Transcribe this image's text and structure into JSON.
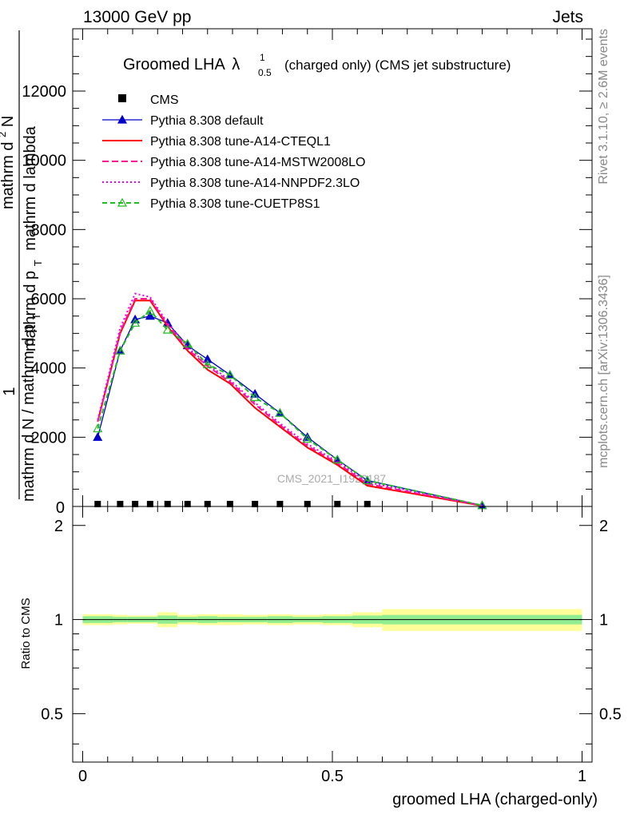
{
  "header": {
    "left": "13000 GeV pp",
    "right": "Jets"
  },
  "side": {
    "rivet": "Rivet 3.1.10, ≥ 2.6M events",
    "mcplots": "mcplots.cern.ch [arXiv:1306.3436]"
  },
  "labels": {
    "title_main": "Groomed LHA",
    "title_lambda": "λ",
    "title_sup": "1",
    "title_sub": "0.5",
    "title_rest": "(charged only) (CMS jet substructure)",
    "ylabel_1": "1",
    "ylabel_bottom": "mathrm d N / mathrm d p",
    "ylabel_bottom_sub": "T",
    "ylabel_top": "mathrm d",
    "ylabel_top_sup": "2",
    "ylabel_top_n": "N",
    "ylabel_top_dpt": "mathrm d p",
    "ylabel_top_dpt_sub": "T",
    "ylabel_top_rest": "mathrm d lambda",
    "ratio_ylabel": "Ratio to CMS",
    "xlabel": "groomed LHA (charged-only)",
    "watermark": "CMS_2021_I1920187"
  },
  "chart_data": {
    "type": "line",
    "xlim": [
      -0.02,
      1.02
    ],
    "ylim": [
      0,
      13800
    ],
    "yticks": [
      "2000",
      "4000",
      "6000",
      "8000",
      "10000",
      "12000"
    ],
    "ratio_ylim": [
      0.35,
      2.3
    ],
    "ratio_yticks_left": [
      "0.5",
      "1",
      "2"
    ],
    "ratio_yticks_right": [
      "0.5",
      "1",
      "2"
    ],
    "xticks": [
      "0",
      "0.5",
      "1"
    ],
    "legend_position": "top-left",
    "cms": {
      "name": "CMS",
      "x": [
        0.03,
        0.075,
        0.105,
        0.135,
        0.17,
        0.21,
        0.25,
        0.295,
        0.345,
        0.395,
        0.45,
        0.51,
        0.57
      ],
      "y": [
        0,
        0,
        0,
        0,
        0,
        0,
        0,
        0,
        0,
        0,
        0,
        0,
        0
      ],
      "err": [
        60,
        60,
        60,
        60,
        60,
        60,
        60,
        60,
        60,
        60,
        60,
        60,
        60
      ]
    },
    "band_edges": [
      0,
      0.06,
      0.09,
      0.12,
      0.15,
      0.19,
      0.23,
      0.27,
      0.32,
      0.37,
      0.42,
      0.48,
      0.54,
      0.6,
      1.0
    ],
    "band_inner": [
      0.025,
      0.02,
      0.02,
      0.02,
      0.03,
      0.02,
      0.025,
      0.02,
      0.02,
      0.025,
      0.02,
      0.025,
      0.03,
      0.035
    ],
    "band_outer": [
      0.04,
      0.035,
      0.03,
      0.03,
      0.055,
      0.035,
      0.04,
      0.04,
      0.035,
      0.04,
      0.035,
      0.04,
      0.055,
      0.08
    ],
    "x": [
      0.03,
      0.075,
      0.105,
      0.135,
      0.17,
      0.21,
      0.25,
      0.295,
      0.345,
      0.395,
      0.45,
      0.51,
      0.57,
      0.8
    ],
    "series": [
      {
        "name": "Pythia 8.308 default",
        "color": "#0000cc",
        "dash": "",
        "marker": "triangle-filled",
        "values": [
          2000,
          4500,
          5400,
          5500,
          5300,
          4650,
          4250,
          3800,
          3250,
          2700,
          2000,
          1350,
          750,
          30
        ]
      },
      {
        "name": "Pythia 8.308 tune-A14-CTEQL1",
        "color": "#ff0000",
        "dash": "",
        "marker": "none",
        "values": [
          2450,
          5000,
          5950,
          5950,
          5200,
          4500,
          3950,
          3550,
          2850,
          2300,
          1700,
          1200,
          600,
          20
        ]
      },
      {
        "name": "Pythia 8.308 tune-A14-MSTW2008LO",
        "color": "#ff1493",
        "dash": "8,4",
        "marker": "none",
        "values": [
          2450,
          5050,
          6000,
          6000,
          5250,
          4550,
          4050,
          3600,
          2950,
          2350,
          1750,
          1250,
          650,
          25
        ]
      },
      {
        "name": "Pythia 8.308 tune-A14-NNPDF2.3LO",
        "color": "#ee00ee",
        "dash": "2,3",
        "marker": "none",
        "values": [
          2500,
          5150,
          6150,
          6050,
          5300,
          4600,
          4100,
          3650,
          3000,
          2400,
          1800,
          1300,
          700,
          30
        ]
      },
      {
        "name": "Pythia 8.308 tune-CUETP8S1",
        "color": "#22bb22",
        "dash": "6,4",
        "marker": "triangle-open",
        "values": [
          2250,
          4500,
          5300,
          5650,
          5100,
          4700,
          4100,
          3800,
          3150,
          2700,
          1950,
          1350,
          750,
          30
        ]
      }
    ]
  }
}
